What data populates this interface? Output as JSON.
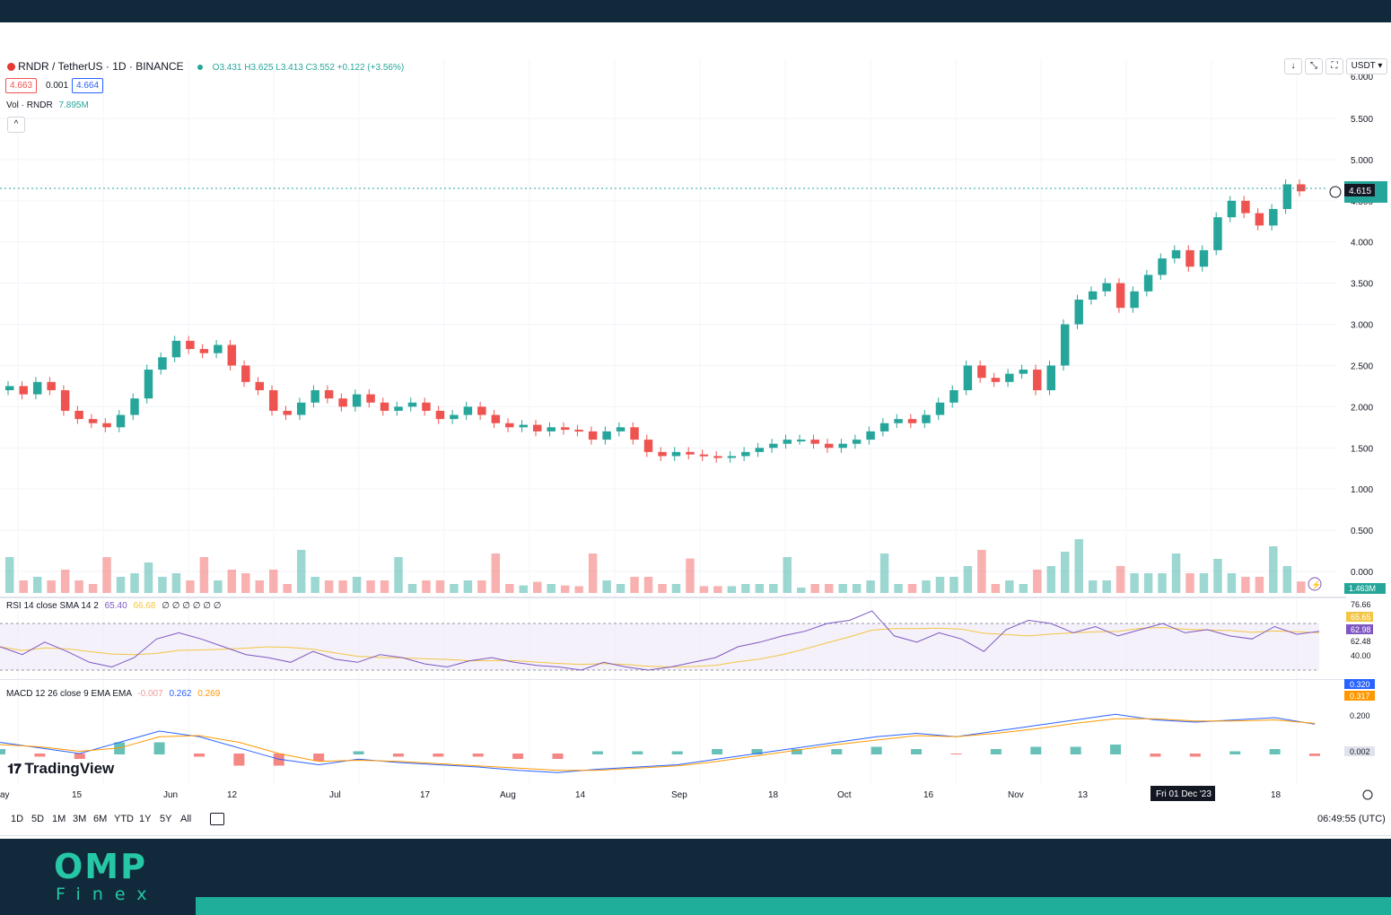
{
  "header": {
    "symbol": "RNDR / TetherUS · 1D · BINANCE",
    "ohlc": "O3.431  H3.625  L3.413  C3.552  +0.122 (+3.56%)",
    "sell_price": "4.663",
    "spread": "0.001",
    "buy_price": "4.664",
    "volume_label": "Vol · RNDR",
    "volume_value": "7.895M",
    "currency": "USDT",
    "currency_chevron": "▾",
    "collapse_glyph": "^"
  },
  "toolbar_icons": {
    "down": "↓",
    "expand": "⤡",
    "fullscreen": "⛶"
  },
  "indicators": {
    "rsi_label": "RSI 14 close SMA 14 2",
    "rsi_value": "65.40",
    "rsi_sma": "66.68",
    "rsi_extra": "∅ ∅ ∅ ∅ ∅ ∅",
    "macd_label": "MACD 12 26 close 9 EMA EMA",
    "macd_hist": "-0.007",
    "macd_value": "0.262",
    "macd_signal": "0.269"
  },
  "price_axis": {
    "ticks": [
      "5.500",
      "5.000",
      "4.500",
      "4.000",
      "3.500",
      "3.000",
      "2.500",
      "2.000",
      "1.500",
      "1.000",
      "0.500",
      "0.000"
    ],
    "last_price": "4.615",
    "volume_tag": "1.463M",
    "top_partial": "6.000"
  },
  "rsi_axis": {
    "ticks": [
      "76.66",
      "65.65",
      "62.98",
      "62.48",
      "40.00"
    ]
  },
  "macd_axis": {
    "ticks": [
      "0.320",
      "0.317",
      "0.200",
      "0.002"
    ]
  },
  "time_axis": {
    "labels": [
      "ay",
      "15",
      "Jun",
      "12",
      "Jul",
      "17",
      "Aug",
      "14",
      "Sep",
      "18",
      "Oct",
      "16",
      "Nov",
      "13",
      "18"
    ],
    "crosshair_date": "Fri 01 Dec '23"
  },
  "bottom_bar": {
    "ranges": [
      "1D",
      "5D",
      "1M",
      "3M",
      "6M",
      "YTD",
      "1Y",
      "5Y",
      "All"
    ],
    "clock": "06:49:55 (UTC)"
  },
  "watermark": "TradingView",
  "brand": {
    "name": "OMP",
    "sub": "Finex"
  },
  "colors": {
    "up": "#26a69a",
    "down": "#ef5350",
    "navy": "#112a3b",
    "teal": "#1fae98"
  },
  "chart_data": {
    "type": "candlestick",
    "title": "RNDR / TetherUS · 1D · BINANCE",
    "ylim": [
      0,
      6.0
    ],
    "x_labels": [
      "May",
      "15",
      "Jun",
      "12",
      "Jul",
      "17",
      "Aug",
      "14",
      "Sep",
      "18",
      "Oct",
      "16",
      "Nov",
      "13",
      "Dec",
      "18"
    ],
    "closes": [
      2.25,
      2.15,
      2.3,
      2.2,
      1.95,
      1.85,
      1.8,
      1.75,
      1.9,
      2.1,
      2.45,
      2.6,
      2.8,
      2.7,
      2.65,
      2.75,
      2.5,
      2.3,
      2.2,
      1.95,
      1.9,
      2.05,
      2.2,
      2.1,
      2.0,
      2.15,
      2.05,
      1.95,
      2.0,
      2.05,
      1.95,
      1.85,
      1.9,
      2.0,
      1.9,
      1.8,
      1.75,
      1.78,
      1.7,
      1.75,
      1.72,
      1.7,
      1.6,
      1.7,
      1.75,
      1.6,
      1.45,
      1.4,
      1.45,
      1.42,
      1.4,
      1.38,
      1.4,
      1.45,
      1.5,
      1.55,
      1.6,
      1.6,
      1.55,
      1.5,
      1.55,
      1.6,
      1.7,
      1.8,
      1.85,
      1.8,
      1.9,
      2.05,
      2.2,
      2.5,
      2.35,
      2.3,
      2.4,
      2.45,
      2.2,
      2.5,
      3.0,
      3.3,
      3.4,
      3.5,
      3.2,
      3.4,
      3.6,
      3.8,
      3.9,
      3.7,
      3.9,
      4.3,
      4.5,
      4.35,
      4.2,
      4.4,
      4.7,
      4.615
    ],
    "series": [
      {
        "name": "RSI 14",
        "values": [
          55,
          50,
          58,
          52,
          45,
          42,
          48,
          60,
          64,
          60,
          55,
          50,
          48,
          45,
          52,
          47,
          45,
          50,
          48,
          44,
          42,
          46,
          48,
          45,
          43,
          42,
          40,
          45,
          42,
          40,
          42,
          45,
          48,
          55,
          58,
          62,
          65,
          70,
          72,
          78,
          62,
          58,
          64,
          60,
          52,
          66,
          72,
          70,
          64,
          68,
          62,
          66,
          70,
          64,
          66,
          62,
          60,
          68,
          63,
          65
        ]
      },
      {
        "name": "MACD",
        "values": [
          0.1,
          0.05,
          0,
          0.1,
          0.2,
          0.15,
          0.05,
          -0.05,
          -0.1,
          -0.05,
          -0.08,
          -0.1,
          -0.12,
          -0.15,
          -0.17,
          -0.14,
          -0.12,
          -0.1,
          -0.05,
          0,
          0.05,
          0.1,
          0.15,
          0.18,
          0.15,
          0.2,
          0.25,
          0.3,
          0.35,
          0.3,
          0.28,
          0.3,
          0.32,
          0.262
        ]
      },
      {
        "name": "Signal",
        "values": [
          0.08,
          0.06,
          0.02,
          0.05,
          0.15,
          0.16,
          0.1,
          0.0,
          -0.07,
          -0.06,
          -0.07,
          -0.09,
          -0.11,
          -0.13,
          -0.15,
          -0.15,
          -0.13,
          -0.11,
          -0.07,
          -0.02,
          0.03,
          0.08,
          0.12,
          0.16,
          0.15,
          0.18,
          0.22,
          0.27,
          0.31,
          0.31,
          0.29,
          0.29,
          0.3,
          0.269
        ]
      }
    ],
    "last_price": 4.615,
    "volume_last": "1.463M"
  }
}
